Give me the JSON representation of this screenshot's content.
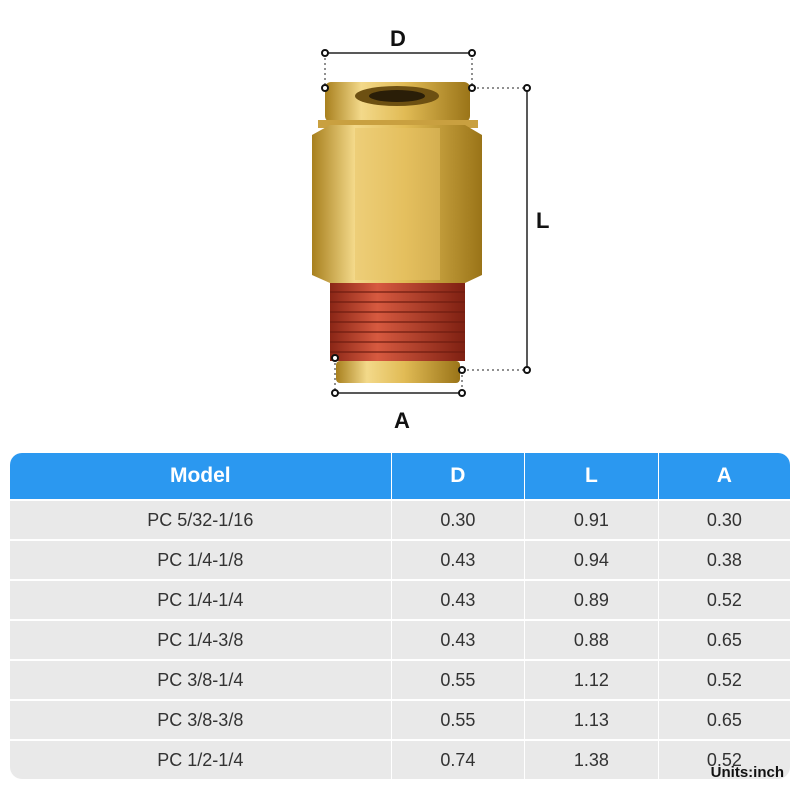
{
  "dimensions": {
    "d_label": "D",
    "l_label": "L",
    "a_label": "A"
  },
  "colors": {
    "header": "#2b98f0",
    "brass": "#d9b24a",
    "thread": "#b8402c",
    "row": "#e9e9e9"
  },
  "table": {
    "headers": [
      "Model",
      "D",
      "L",
      "A"
    ],
    "rows": [
      [
        "PC 5/32-1/16",
        "0.30",
        "0.91",
        "0.30"
      ],
      [
        "PC 1/4-1/8",
        "0.43",
        "0.94",
        "0.38"
      ],
      [
        "PC 1/4-1/4",
        "0.43",
        "0.89",
        "0.52"
      ],
      [
        "PC 1/4-3/8",
        "0.43",
        "0.88",
        "0.65"
      ],
      [
        "PC 3/8-1/4",
        "0.55",
        "1.12",
        "0.52"
      ],
      [
        "PC 3/8-3/8",
        "0.55",
        "1.13",
        "0.65"
      ],
      [
        "PC 1/2-1/4",
        "0.74",
        "1.38",
        "0.52"
      ]
    ]
  },
  "units": "Units:inch"
}
